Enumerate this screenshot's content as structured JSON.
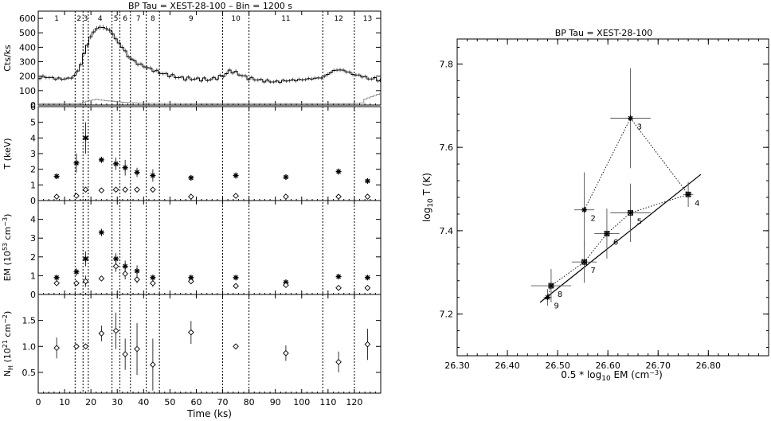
{
  "chart_data": [
    {
      "type": "panel-timeseries",
      "title": "BP Tau = XEST-28-100   –   Bin = 1200 s",
      "xlabel": "Time (ks)",
      "xlim": [
        0,
        130
      ],
      "xticks": [
        0,
        10,
        20,
        30,
        40,
        50,
        60,
        70,
        80,
        90,
        100,
        110,
        120
      ],
      "interval_boundaries": [
        14,
        17,
        19,
        28,
        31,
        35,
        41,
        46,
        70,
        80,
        108,
        120
      ],
      "interval_labels": [
        {
          "label": "1",
          "x": 7
        },
        {
          "label": "2",
          "x": 15.5
        },
        {
          "label": "3",
          "x": 18
        },
        {
          "label": "4",
          "x": 23.5
        },
        {
          "label": "5",
          "x": 29.5
        },
        {
          "label": "6",
          "x": 33
        },
        {
          "label": "7",
          "x": 38
        },
        {
          "label": "8",
          "x": 43.5
        },
        {
          "label": "9",
          "x": 58
        },
        {
          "label": "10",
          "x": 75
        },
        {
          "label": "11",
          "x": 94
        },
        {
          "label": "12",
          "x": 114
        },
        {
          "label": "13",
          "x": 125
        }
      ],
      "panels": [
        {
          "id": "lightcurve",
          "ylabel": "Cts/ks",
          "ylim": [
            0,
            650
          ],
          "yticks": [
            "0",
            "100",
            "200",
            "300",
            "400",
            "500",
            "600"
          ],
          "lightcurve_points": [
            [
              0,
              190
            ],
            [
              3,
              195
            ],
            [
              6,
              185
            ],
            [
              9,
              180
            ],
            [
              12,
              185
            ],
            [
              14,
              205
            ],
            [
              16,
              270
            ],
            [
              18,
              390
            ],
            [
              20,
              480
            ],
            [
              22,
              530
            ],
            [
              24,
              540
            ],
            [
              26,
              530
            ],
            [
              28,
              500
            ],
            [
              30,
              440
            ],
            [
              32,
              400
            ],
            [
              34,
              340
            ],
            [
              36,
              310
            ],
            [
              38,
              285
            ],
            [
              40,
              270
            ],
            [
              42,
              255
            ],
            [
              44,
              240
            ],
            [
              46,
              225
            ],
            [
              50,
              205
            ],
            [
              55,
              185
            ],
            [
              60,
              180
            ],
            [
              65,
              175
            ],
            [
              70,
              200
            ],
            [
              73,
              240
            ],
            [
              76,
              215
            ],
            [
              80,
              185
            ],
            [
              85,
              170
            ],
            [
              90,
              160
            ],
            [
              95,
              170
            ],
            [
              100,
              175
            ],
            [
              105,
              185
            ],
            [
              108,
              190
            ],
            [
              110,
              215
            ],
            [
              113,
              245
            ],
            [
              116,
              240
            ],
            [
              120,
              210
            ],
            [
              123,
              200
            ],
            [
              126,
              180
            ],
            [
              128,
              185
            ],
            [
              130,
              165
            ]
          ],
          "background_points": [
            [
              0,
              10
            ],
            [
              16,
              10
            ],
            [
              18,
              25
            ],
            [
              22,
              40
            ],
            [
              26,
              30
            ],
            [
              32,
              20
            ],
            [
              40,
              12
            ],
            [
              60,
              10
            ],
            [
              120,
              10
            ],
            [
              123,
              15
            ],
            [
              124,
              40
            ],
            [
              127,
              60
            ],
            [
              130,
              80
            ]
          ]
        },
        {
          "id": "temperature",
          "ylabel": "T (keV)",
          "ylim": [
            0,
            6
          ],
          "yticks": [
            "0",
            "1",
            "2",
            "3",
            "4",
            "5",
            "6"
          ],
          "series": [
            {
              "marker": "asterisk",
              "points": [
                [
                  7,
                  1.55,
                  0.15
                ],
                [
                  14.5,
                  2.4,
                  0.6
                ],
                [
                  18,
                  4.0,
                  1.0
                ],
                [
                  24,
                  2.6,
                  0.2
                ],
                [
                  29.5,
                  2.35,
                  0.4
                ],
                [
                  33,
                  2.1,
                  0.5
                ],
                [
                  37.5,
                  1.8,
                  0.3
                ],
                [
                  43.5,
                  1.6,
                  0.4
                ],
                [
                  58,
                  1.45,
                  0.15
                ],
                [
                  75,
                  1.6,
                  0.2
                ],
                [
                  94,
                  1.5,
                  0.15
                ],
                [
                  114,
                  1.85,
                  0.2
                ],
                [
                  125,
                  1.25,
                  0.15
                ]
              ]
            },
            {
              "marker": "diamond",
              "points": [
                [
                  7,
                  0.25,
                  0
                ],
                [
                  14.5,
                  0.3,
                  0
                ],
                [
                  18,
                  0.7,
                  0
                ],
                [
                  24,
                  0.65,
                  0
                ],
                [
                  29.5,
                  0.7,
                  0
                ],
                [
                  33,
                  0.7,
                  0
                ],
                [
                  37.5,
                  0.7,
                  0
                ],
                [
                  43.5,
                  0.7,
                  0
                ],
                [
                  58,
                  0.25,
                  0
                ],
                [
                  75,
                  0.3,
                  0
                ],
                [
                  94,
                  0.25,
                  0
                ],
                [
                  114,
                  0.25,
                  0
                ],
                [
                  125,
                  0.25,
                  0
                ]
              ]
            }
          ]
        },
        {
          "id": "emission-measure",
          "ylabel": "EM (10",
          "ylabel_sup": "53",
          "ylabel_tail": " cm",
          "ylabel_tail_sup": "−3",
          "ylabel_close": ")",
          "ylim": [
            0,
            5
          ],
          "yticks": [
            "0",
            "1",
            "2",
            "3",
            "4"
          ],
          "series": [
            {
              "marker": "asterisk",
              "points": [
                [
                  7,
                  0.9,
                  0.1
                ],
                [
                  14.5,
                  1.2,
                  0.2
                ],
                [
                  18,
                  1.9,
                  0.4
                ],
                [
                  24,
                  3.3,
                  0.2
                ],
                [
                  29.5,
                  1.9,
                  0.3
                ],
                [
                  33,
                  1.5,
                  0.3
                ],
                [
                  37.5,
                  1.25,
                  0.3
                ],
                [
                  43.5,
                  0.9,
                  0.15
                ],
                [
                  58,
                  0.9,
                  0.1
                ],
                [
                  75,
                  0.9,
                  0.1
                ],
                [
                  94,
                  0.65,
                  0.1
                ],
                [
                  114,
                  0.95,
                  0.1
                ],
                [
                  125,
                  0.9,
                  0.1
                ]
              ]
            },
            {
              "marker": "diamond",
              "points": [
                [
                  7,
                  0.6,
                  0.15
                ],
                [
                  14.5,
                  0.6,
                  0
                ],
                [
                  18,
                  0.7,
                  0.3
                ],
                [
                  24,
                  0.85,
                  0
                ],
                [
                  29.5,
                  1.5,
                  0.3
                ],
                [
                  33,
                  1.1,
                  0.3
                ],
                [
                  37.5,
                  0.8,
                  0.2
                ],
                [
                  43.5,
                  0.6,
                  0.2
                ],
                [
                  58,
                  0.7,
                  0.1
                ],
                [
                  75,
                  0.45,
                  0.1
                ],
                [
                  94,
                  0.5,
                  0.1
                ],
                [
                  114,
                  0.35,
                  0.1
                ],
                [
                  125,
                  0.35,
                  0.1
                ]
              ]
            }
          ]
        },
        {
          "id": "column-density",
          "ylabel": "N",
          "ylabel_sub": "H",
          "ylabel_mid": " (10",
          "ylabel_sup": "21",
          "ylabel_tail": " cm",
          "ylabel_tail_sup": "−2",
          "ylabel_close": ")",
          "ylim": [
            0.1,
            2.0
          ],
          "yticks": [
            "0.5",
            "1.0",
            "1.5"
          ],
          "ytick_values": [
            0.5,
            1.0,
            1.5
          ],
          "series": [
            {
              "marker": "diamond",
              "points": [
                [
                  7,
                  0.97,
                  0.2
                ],
                [
                  14.5,
                  1.0,
                  0
                ],
                [
                  18,
                  1.0,
                  0
                ],
                [
                  24,
                  1.25,
                  0.15
                ],
                [
                  29.5,
                  1.3,
                  0.35
                ],
                [
                  33,
                  0.85,
                  0.3
                ],
                [
                  37.5,
                  0.95,
                  0.5
                ],
                [
                  43.5,
                  0.65,
                  0.5
                ],
                [
                  58,
                  1.27,
                  0.22
                ],
                [
                  75,
                  1.0,
                  0
                ],
                [
                  94,
                  0.87,
                  0.15
                ],
                [
                  114,
                  0.7,
                  0.2
                ],
                [
                  125,
                  1.04,
                  0.3
                ]
              ]
            }
          ]
        }
      ]
    },
    {
      "type": "scatter",
      "title": "BP Tau = XEST-28-100",
      "xlabel": "0.5 * log",
      "xlabel_sub": "10",
      "xlabel_tail": " EM (cm",
      "xlabel_tail_sup": "−3",
      "xlabel_close": ")",
      "ylabel": "log",
      "ylabel_sub": "10",
      "ylabel_tail": " T (K)",
      "xlim": [
        26.3,
        26.92
      ],
      "ylim": [
        7.1,
        7.86
      ],
      "xticks": [
        "26.30",
        "26.40",
        "26.50",
        "26.60",
        "26.70",
        "26.80"
      ],
      "xtick_values": [
        26.3,
        26.4,
        26.5,
        26.6,
        26.7,
        26.8
      ],
      "yticks": [
        "7.2",
        "7.4",
        "7.6",
        "7.8"
      ],
      "ytick_values": [
        7.2,
        7.4,
        7.6,
        7.8
      ],
      "points": [
        {
          "label": "2",
          "x": 26.553,
          "y": 7.45,
          "xerr": 0.02,
          "yerr": 0.09
        },
        {
          "label": "3",
          "x": 26.645,
          "y": 7.67,
          "xerr": 0.04,
          "yerr": 0.12
        },
        {
          "label": "4",
          "x": 26.76,
          "y": 7.487,
          "xerr": 0.01,
          "yerr": 0.03
        },
        {
          "label": "5",
          "x": 26.645,
          "y": 7.443,
          "xerr": 0.04,
          "yerr": 0.07
        },
        {
          "label": "6",
          "x": 26.598,
          "y": 7.393,
          "xerr": 0.025,
          "yerr": 0.06
        },
        {
          "label": "7",
          "x": 26.553,
          "y": 7.325,
          "xerr": 0.025,
          "yerr": 0.05
        },
        {
          "label": "8",
          "x": 26.487,
          "y": 7.268,
          "xerr": 0.04,
          "yerr": 0.04
        },
        {
          "label": "9",
          "x": 26.48,
          "y": 7.24,
          "xerr": 0.008,
          "yerr": 0.02
        }
      ],
      "fit_line": [
        [
          26.465,
          7.228
        ],
        [
          26.785,
          7.535
        ]
      ]
    }
  ]
}
